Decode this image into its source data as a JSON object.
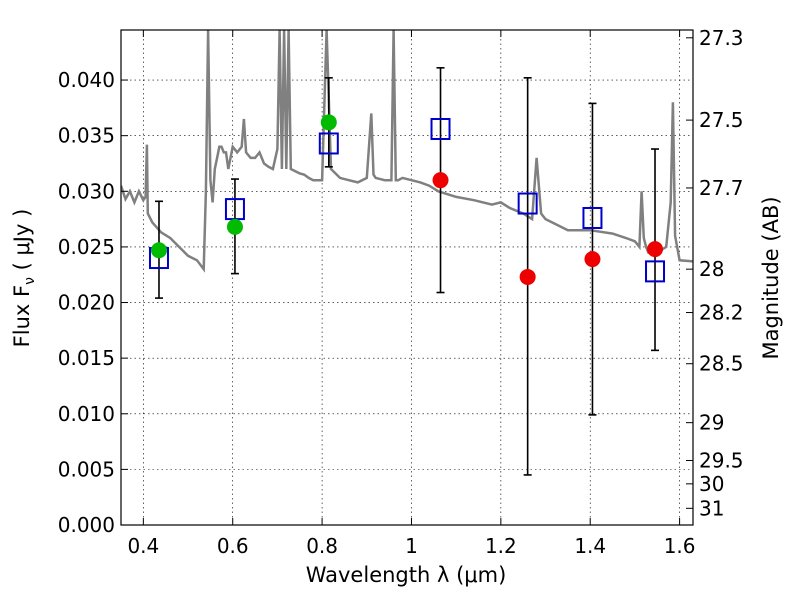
{
  "chart_data": {
    "type": "scatter",
    "xlabel": "Wavelength  λ (μm)",
    "ylabel": "Flux  F",
    "ylabel_sub": "ν",
    "ylabel_unit": "  ( μJy )",
    "y2label": "Magnitude (AB)",
    "xlim": [
      0.35,
      1.63
    ],
    "ylim": [
      0.0,
      0.0445
    ],
    "grid": true,
    "x_ticks": [
      {
        "value": 0.4,
        "label": "0.4"
      },
      {
        "value": 0.6,
        "label": "0.6"
      },
      {
        "value": 0.8,
        "label": "0.8"
      },
      {
        "value": 1.0,
        "label": "1"
      },
      {
        "value": 1.2,
        "label": "1.2"
      },
      {
        "value": 1.4,
        "label": "1.4"
      },
      {
        "value": 1.6,
        "label": "1.6"
      }
    ],
    "y_ticks": [
      {
        "value": 0.0,
        "label": "0.000"
      },
      {
        "value": 0.005,
        "label": "0.005"
      },
      {
        "value": 0.01,
        "label": "0.010"
      },
      {
        "value": 0.015,
        "label": "0.015"
      },
      {
        "value": 0.02,
        "label": "0.020"
      },
      {
        "value": 0.025,
        "label": "0.025"
      },
      {
        "value": 0.03,
        "label": "0.030"
      },
      {
        "value": 0.035,
        "label": "0.035"
      },
      {
        "value": 0.04,
        "label": "0.040"
      }
    ],
    "y2_ticks": [
      {
        "label": "27.3",
        "flux": 0.0438
      },
      {
        "label": "27.5",
        "flux": 0.0364
      },
      {
        "label": "27.7",
        "flux": 0.0303
      },
      {
        "label": "28",
        "flux": 0.023
      },
      {
        "label": "28.2",
        "flux": 0.0191
      },
      {
        "label": "28.5",
        "flux": 0.0145
      },
      {
        "label": "29",
        "flux": 0.0092
      },
      {
        "label": "29.5",
        "flux": 0.0058
      },
      {
        "label": "30",
        "flux": 0.0037
      },
      {
        "label": "31",
        "flux": 0.0015
      }
    ],
    "series": [
      {
        "kind": "line",
        "color": "#808080",
        "x": [
          0.35,
          0.36,
          0.37,
          0.38,
          0.39,
          0.4,
          0.405,
          0.408,
          0.41,
          0.42,
          0.44,
          0.46,
          0.48,
          0.5,
          0.52,
          0.535,
          0.54,
          0.545,
          0.55,
          0.555,
          0.56,
          0.565,
          0.57,
          0.575,
          0.58,
          0.585,
          0.59,
          0.6,
          0.61,
          0.62,
          0.625,
          0.63,
          0.64,
          0.65,
          0.66,
          0.67,
          0.68,
          0.69,
          0.7,
          0.705,
          0.71,
          0.715,
          0.72,
          0.725,
          0.73,
          0.74,
          0.75,
          0.76,
          0.77,
          0.78,
          0.79,
          0.8,
          0.81,
          0.82,
          0.84,
          0.86,
          0.88,
          0.9,
          0.91,
          0.915,
          0.92,
          0.94,
          0.955,
          0.96,
          0.965,
          0.97,
          0.98,
          1.0,
          1.02,
          1.04,
          1.06,
          1.1,
          1.14,
          1.18,
          1.2,
          1.22,
          1.25,
          1.27,
          1.28,
          1.29,
          1.3,
          1.35,
          1.4,
          1.45,
          1.48,
          1.5,
          1.51,
          1.515,
          1.52,
          1.525,
          1.53,
          1.55,
          1.57,
          1.58,
          1.585,
          1.59,
          1.6,
          1.63
        ],
        "y": [
          0.0305,
          0.0293,
          0.03,
          0.029,
          0.03,
          0.0292,
          0.0295,
          0.0342,
          0.028,
          0.0272,
          0.0263,
          0.0258,
          0.025,
          0.0242,
          0.0238,
          0.023,
          0.03,
          0.0445,
          0.031,
          0.029,
          0.032,
          0.033,
          0.034,
          0.034,
          0.0335,
          0.0335,
          0.032,
          0.034,
          0.0335,
          0.034,
          0.0365,
          0.0335,
          0.033,
          0.033,
          0.0335,
          0.0325,
          0.0322,
          0.032,
          0.0338,
          0.0445,
          0.032,
          0.0445,
          0.032,
          0.0445,
          0.032,
          0.0318,
          0.0316,
          0.0315,
          0.0312,
          0.031,
          0.031,
          0.031,
          0.0445,
          0.032,
          0.0312,
          0.031,
          0.0308,
          0.0312,
          0.037,
          0.0315,
          0.0312,
          0.031,
          0.031,
          0.0445,
          0.031,
          0.031,
          0.0312,
          0.031,
          0.0308,
          0.0305,
          0.03,
          0.0295,
          0.0292,
          0.0288,
          0.029,
          0.0285,
          0.028,
          0.0275,
          0.033,
          0.028,
          0.0275,
          0.0265,
          0.0265,
          0.0262,
          0.0258,
          0.0255,
          0.025,
          0.03,
          0.0258,
          0.025,
          0.0245,
          0.0245,
          0.025,
          0.029,
          0.038,
          0.026,
          0.0238,
          0.0237
        ]
      },
      {
        "kind": "markers",
        "marker": "square",
        "color": "#0000cc",
        "x": [
          0.435,
          0.605,
          0.815,
          1.065,
          1.26,
          1.405,
          1.545
        ],
        "y": [
          0.024,
          0.0284,
          0.0343,
          0.0356,
          0.0289,
          0.0276,
          0.0228
        ]
      },
      {
        "kind": "errorbars",
        "color": "#000000",
        "x": [
          0.435,
          0.605,
          0.815,
          1.065,
          1.26,
          1.405,
          1.545
        ],
        "low": [
          0.0204,
          0.0226,
          0.0322,
          0.0209,
          0.0045,
          0.0099,
          0.0157
        ],
        "high": [
          0.0291,
          0.0311,
          0.0402,
          0.0411,
          0.0402,
          0.0379,
          0.0338
        ]
      },
      {
        "kind": "markers",
        "marker": "circle",
        "color": "#00bb00",
        "x": [
          0.435,
          0.605,
          0.815
        ],
        "y": [
          0.0247,
          0.0268,
          0.0362
        ]
      },
      {
        "kind": "markers",
        "marker": "circle",
        "color": "#ee0000",
        "x": [
          1.065,
          1.26,
          1.405,
          1.545
        ],
        "y": [
          0.031,
          0.0223,
          0.0239,
          0.0248
        ]
      }
    ]
  }
}
